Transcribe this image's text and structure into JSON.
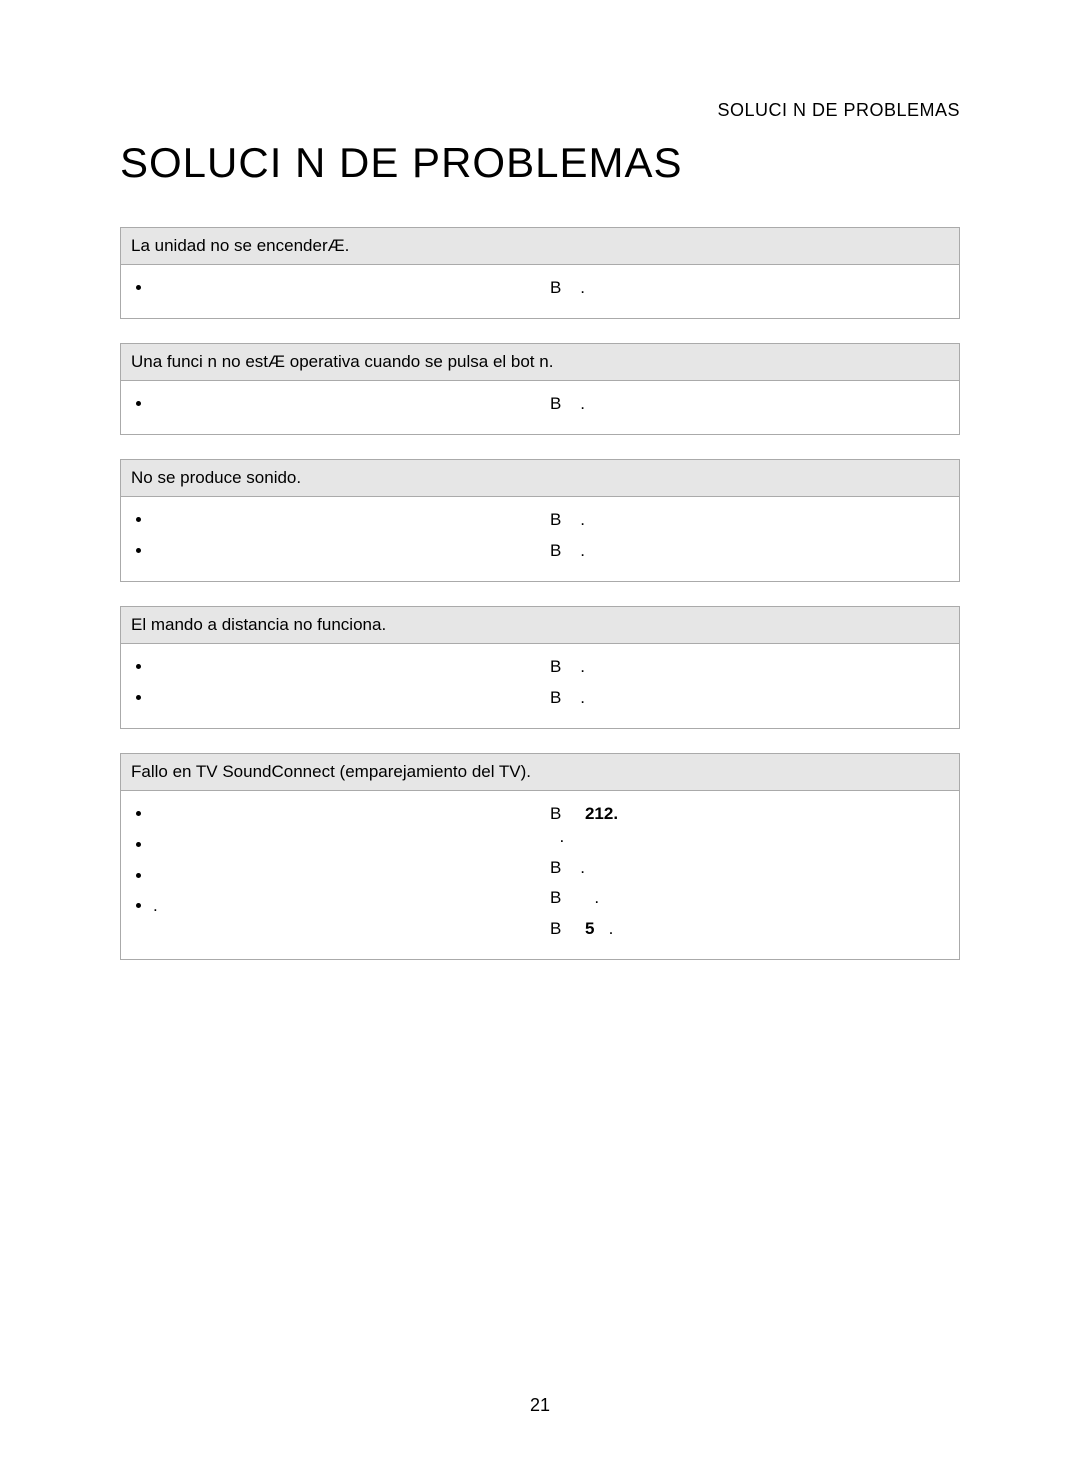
{
  "header_label": "SOLUCI N DE PROBLEMAS",
  "title": "SOLUCI N DE PROBLEMAS",
  "page_number": "21",
  "colors": {
    "background": "#ffffff",
    "header_bg": "#e6e6e6",
    "border": "#aaaaaa",
    "text": "#000000"
  },
  "typography": {
    "header_label_fontsize": 18,
    "title_fontsize": 42,
    "body_fontsize": 17,
    "page_number_fontsize": 18,
    "font_family": "Arial"
  },
  "tables": [
    {
      "problem": "La unidad no se encenderÆ.",
      "causes": [
        ""
      ],
      "solutions_prefix": "B",
      "solutions": [
        "."
      ]
    },
    {
      "problem": "Una funci n no estÆ operativa cuando se pulsa el bot n.",
      "causes": [
        ""
      ],
      "solutions_prefix": "B",
      "solutions": [
        "."
      ]
    },
    {
      "problem": "No se produce sonido.",
      "causes": [
        "",
        ""
      ],
      "solutions_prefix": "B",
      "solutions": [
        ".",
        "."
      ]
    },
    {
      "problem": "El mando a distancia no funciona.",
      "causes": [
        "",
        ""
      ],
      "solutions_prefix": "B",
      "solutions": [
        ".",
        "."
      ]
    },
    {
      "problem": "Fallo en TV SoundConnect (emparejamiento del TV).",
      "causes": [
        "",
        "",
        "",
        "."
      ],
      "solutions_prefix": "B",
      "solutions": [
        {
          "type": "complex",
          "pre": "",
          "bold1": "212.",
          "mid": "",
          "post": "."
        },
        ".",
        {
          "type": "complex",
          "pre": "",
          "post": "."
        },
        {
          "type": "complex",
          "pre": "",
          "bold1": "5",
          "post": "."
        }
      ]
    }
  ]
}
